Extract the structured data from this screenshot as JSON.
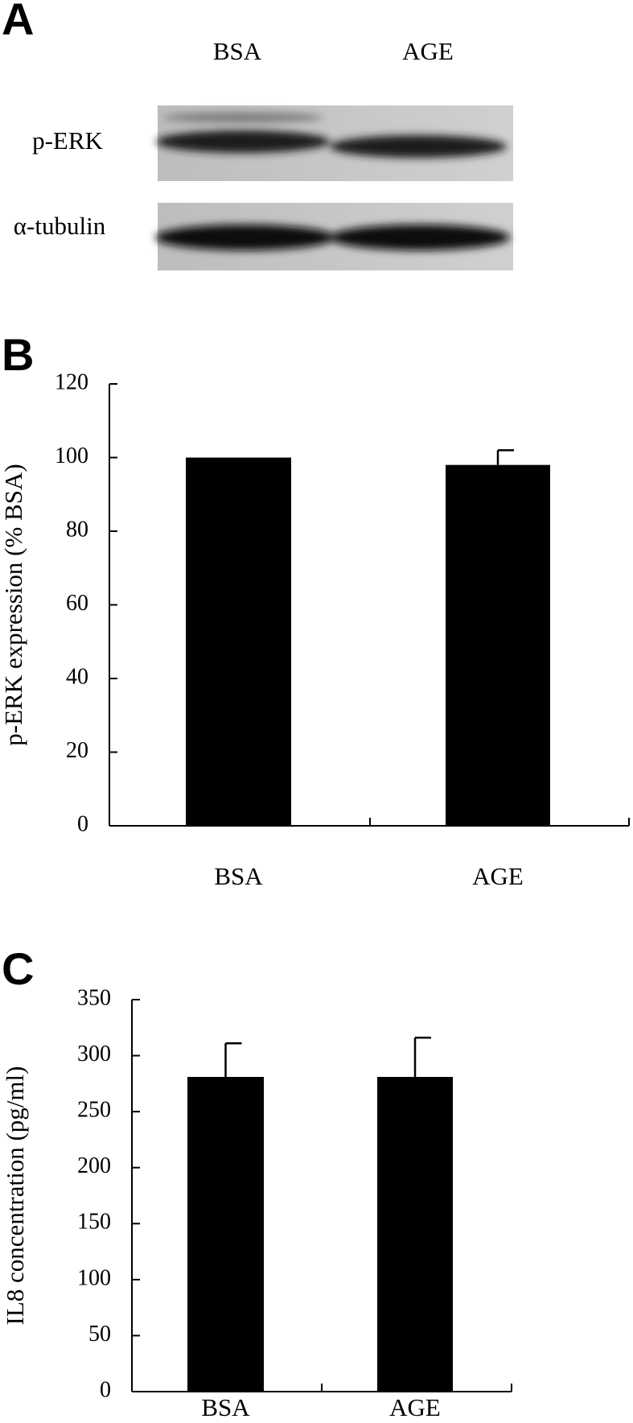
{
  "panel_a": {
    "label": "A",
    "lanes": [
      "BSA",
      "AGE"
    ],
    "bands": [
      "p-ERK",
      "α-tubulin"
    ]
  },
  "chart_data": [
    {
      "type": "bar",
      "panel_label": "B",
      "ylabel": "p-ERK expression (% BSA)",
      "categories": [
        "BSA",
        "AGE"
      ],
      "values": [
        100,
        98
      ],
      "errors": [
        null,
        4
      ],
      "color": "#000000",
      "ylim": [
        0,
        120
      ],
      "yticks": [
        0,
        20,
        40,
        60,
        80,
        100,
        120
      ]
    },
    {
      "type": "bar",
      "panel_label": "C",
      "ylabel": "IL8 concentration (pg/ml)",
      "categories": [
        "BSA",
        "AGE"
      ],
      "values": [
        281,
        281
      ],
      "errors": [
        30,
        35
      ],
      "color": "#000000",
      "ylim": [
        0,
        350
      ],
      "yticks": [
        0,
        50,
        100,
        150,
        200,
        250,
        300,
        350
      ]
    }
  ]
}
